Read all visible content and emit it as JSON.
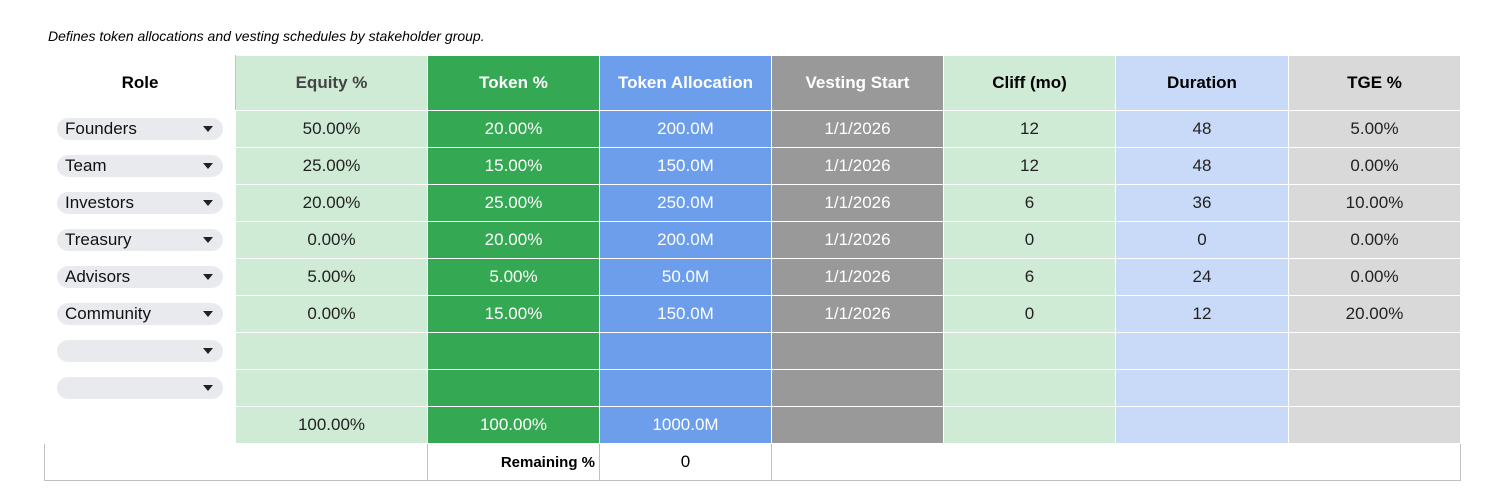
{
  "note": "Defines token allocations and vesting schedules by stakeholder group.",
  "table": {
    "headers": [
      "Role",
      "Equity %",
      "Token %",
      "Token Allocation",
      "Vesting Start",
      "Cliff (mo)",
      "Duration",
      "TGE %"
    ],
    "rows": [
      [
        "Founders",
        "50.00%",
        "20.00%",
        "200.0M",
        "1/1/2026",
        12,
        48,
        "5.00%"
      ],
      [
        "Team",
        "25.00%",
        "15.00%",
        "150.0M",
        "1/1/2026",
        12,
        48,
        "0.00%"
      ],
      [
        "Investors",
        "20.00%",
        "25.00%",
        "250.0M",
        "1/1/2026",
        6,
        36,
        "10.00%"
      ],
      [
        "Treasury",
        "0.00%",
        "20.00%",
        "200.0M",
        "1/1/2026",
        0,
        0,
        "0.00%"
      ],
      [
        "Advisors",
        "5.00%",
        "5.00%",
        "50.0M",
        "1/1/2026",
        6,
        24,
        "0.00%"
      ],
      [
        "Community",
        "0.00%",
        "15.00%",
        "150.0M",
        "1/1/2026",
        0,
        12,
        "20.00%"
      ]
    ],
    "totals": {
      "equity": "100.00%",
      "token": "100.00%",
      "allocation": "1000.0M"
    },
    "remaining": {
      "label": "Remaining %",
      "value": 0
    }
  }
}
